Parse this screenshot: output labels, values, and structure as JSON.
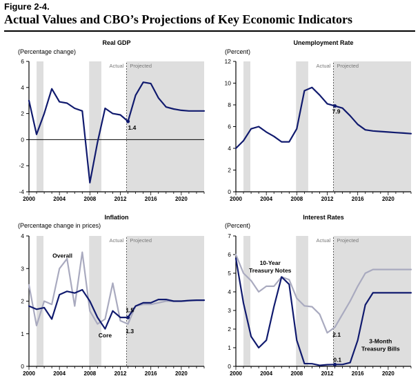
{
  "figure": {
    "label": "Figure 2-4.",
    "title": "Actual Values and CBO’s Projections of Key Economic Indicators"
  },
  "colors": {
    "shade": "#dedede",
    "navy": "#101a6e",
    "gray_line": "#a9aabf",
    "axis": "#000000"
  },
  "chart_data": [
    {
      "type": "line",
      "title": "Real GDP",
      "ylabel": "(Percentage change)",
      "xlim": [
        2000,
        2023
      ],
      "ylim": [
        -4,
        6
      ],
      "yticks": [
        -4,
        -2,
        0,
        2,
        4,
        6
      ],
      "xticks": [
        2000,
        2004,
        2008,
        2012,
        2016,
        2020
      ],
      "zero_line": 0,
      "recessions": [
        [
          2001.0,
          2001.9
        ],
        [
          2007.9,
          2009.5
        ]
      ],
      "actual_projected_divider": 2012.8,
      "actual_label": "Actual",
      "projected_label": "Projected",
      "series": [
        {
          "name": "Real GDP",
          "style": "navy",
          "x": [
            2000,
            2001,
            2002,
            2003,
            2004,
            2005,
            2006,
            2007,
            2008,
            2009,
            2010,
            2011,
            2012,
            2013,
            2014,
            2015,
            2016,
            2017,
            2018,
            2019,
            2020,
            2021,
            2022,
            2023
          ],
          "values": [
            3.0,
            0.4,
            2.0,
            3.9,
            2.9,
            2.8,
            2.4,
            2.2,
            -3.3,
            -0.2,
            2.4,
            2.0,
            1.9,
            1.4,
            3.4,
            4.4,
            4.3,
            3.2,
            2.5,
            2.35,
            2.25,
            2.2,
            2.2,
            2.2
          ]
        }
      ],
      "annotations": [
        {
          "text": "1.4",
          "x": 2013,
          "y": 1.4,
          "anchor": "below-right"
        }
      ]
    },
    {
      "type": "line",
      "title": "Unemployment Rate",
      "ylabel": "(Percent)",
      "xlim": [
        2000,
        2023
      ],
      "ylim": [
        0,
        12
      ],
      "yticks": [
        0,
        2,
        4,
        6,
        8,
        10,
        12
      ],
      "xticks": [
        2000,
        2004,
        2008,
        2012,
        2016,
        2020
      ],
      "recessions": [
        [
          2001.0,
          2001.9
        ],
        [
          2007.9,
          2009.5
        ]
      ],
      "actual_projected_divider": 2012.8,
      "actual_label": "Actual",
      "projected_label": "Projected",
      "series": [
        {
          "name": "Unemployment Rate",
          "style": "navy",
          "x": [
            2000,
            2001,
            2002,
            2003,
            2004,
            2005,
            2006,
            2007,
            2008,
            2009,
            2010,
            2011,
            2012,
            2013,
            2014,
            2015,
            2016,
            2017,
            2018,
            2019,
            2020,
            2021,
            2022,
            2023
          ],
          "values": [
            4.0,
            4.7,
            5.8,
            6.0,
            5.5,
            5.1,
            4.6,
            4.6,
            5.8,
            9.3,
            9.6,
            8.9,
            8.1,
            7.9,
            7.7,
            7.0,
            6.2,
            5.7,
            5.6,
            5.55,
            5.5,
            5.45,
            5.4,
            5.35
          ]
        }
      ],
      "annotations": [
        {
          "text": "7.9",
          "x": 2013,
          "y": 7.9,
          "anchor": "below"
        }
      ]
    },
    {
      "type": "line",
      "title": "Inflation",
      "ylabel": "(Percentage change in prices)",
      "xlim": [
        2000,
        2023
      ],
      "ylim": [
        0,
        4
      ],
      "yticks": [
        0,
        1,
        2,
        3,
        4
      ],
      "xticks": [
        2000,
        2004,
        2008,
        2012,
        2016,
        2020
      ],
      "recessions": [
        [
          2001.0,
          2001.9
        ],
        [
          2007.9,
          2009.5
        ]
      ],
      "actual_projected_divider": 2012.8,
      "actual_label": "Actual",
      "projected_label": "Projected",
      "series": [
        {
          "name": "Overall",
          "style": "gray",
          "x": [
            2000,
            2001,
            2002,
            2003,
            2004,
            2005,
            2006,
            2007,
            2008,
            2009,
            2010,
            2011,
            2012,
            2013,
            2014,
            2015,
            2016,
            2017,
            2018,
            2019,
            2020,
            2021,
            2022,
            2023
          ],
          "values": [
            2.5,
            1.25,
            2.0,
            1.9,
            3.0,
            3.3,
            1.85,
            3.5,
            1.7,
            1.3,
            1.45,
            2.55,
            1.4,
            1.3,
            1.85,
            1.9,
            1.9,
            1.95,
            2.0,
            2.0,
            2.0,
            2.02,
            2.03,
            2.03
          ]
        },
        {
          "name": "Core",
          "style": "navy",
          "x": [
            2000,
            2001,
            2002,
            2003,
            2004,
            2005,
            2006,
            2007,
            2008,
            2009,
            2010,
            2011,
            2012,
            2013,
            2014,
            2015,
            2016,
            2017,
            2018,
            2019,
            2020,
            2021,
            2022,
            2023
          ],
          "values": [
            1.85,
            1.75,
            1.8,
            1.45,
            2.2,
            2.3,
            2.25,
            2.35,
            2.0,
            1.5,
            1.15,
            1.7,
            1.5,
            1.5,
            1.85,
            1.95,
            1.95,
            2.05,
            2.05,
            2.0,
            2.0,
            2.02,
            2.03,
            2.03
          ]
        }
      ],
      "annotations": [
        {
          "text": "Overall",
          "x": 2004.4,
          "y": 3.4,
          "anchor": "center"
        },
        {
          "text": "Core",
          "x": 2010.0,
          "y": 0.95,
          "anchor": "center"
        },
        {
          "text": "1.5",
          "x": 2012.7,
          "y": 1.72,
          "anchor": "left"
        },
        {
          "text": "1.3",
          "x": 2012.7,
          "y": 1.08,
          "anchor": "left"
        }
      ]
    },
    {
      "type": "line",
      "title": "Interest Rates",
      "ylabel": "(Percent)",
      "xlim": [
        2000,
        2023
      ],
      "ylim": [
        0,
        7
      ],
      "yticks": [
        0,
        1,
        2,
        3,
        4,
        5,
        6,
        7
      ],
      "xticks": [
        2000,
        2004,
        2008,
        2012,
        2016,
        2020
      ],
      "recessions": [
        [
          2001.0,
          2001.9
        ],
        [
          2007.9,
          2009.5
        ]
      ],
      "actual_projected_divider": 2012.8,
      "actual_label": "Actual",
      "projected_label": "Projected",
      "series": [
        {
          "name": "10-Year Treasury Notes",
          "style": "gray",
          "x": [
            2000,
            2001,
            2002,
            2003,
            2004,
            2005,
            2006,
            2007,
            2008,
            2009,
            2010,
            2011,
            2012,
            2013,
            2014,
            2015,
            2016,
            2017,
            2018,
            2019,
            2020,
            2021,
            2022,
            2023
          ],
          "values": [
            6.0,
            5.0,
            4.6,
            4.0,
            4.3,
            4.3,
            4.8,
            4.65,
            3.65,
            3.25,
            3.2,
            2.8,
            1.8,
            2.1,
            2.8,
            3.5,
            4.3,
            5.0,
            5.2,
            5.2,
            5.2,
            5.2,
            5.2,
            5.2
          ]
        },
        {
          "name": "3-Month Treasury Bills",
          "style": "navy",
          "x": [
            2000,
            2001,
            2002,
            2003,
            2004,
            2005,
            2006,
            2007,
            2008,
            2009,
            2010,
            2011,
            2012,
            2013,
            2014,
            2015,
            2016,
            2017,
            2018,
            2019,
            2020,
            2021,
            2022,
            2023
          ],
          "values": [
            5.8,
            3.4,
            1.6,
            1.0,
            1.4,
            3.2,
            4.8,
            4.4,
            1.4,
            0.15,
            0.14,
            0.05,
            0.09,
            0.1,
            0.1,
            0.2,
            1.4,
            3.3,
            3.95,
            3.95,
            3.95,
            3.95,
            3.95,
            3.95
          ]
        }
      ],
      "annotations": [
        {
          "text": "10-Year",
          "x": 2004.5,
          "y": 5.55,
          "anchor": "center"
        },
        {
          "text": "Treasury Notes",
          "x": 2004.5,
          "y": 5.15,
          "anchor": "center"
        },
        {
          "text": "2.1",
          "x": 2012.7,
          "y": 1.7,
          "anchor": "left"
        },
        {
          "text": "3-Month",
          "x": 2019.0,
          "y": 1.35,
          "anchor": "center"
        },
        {
          "text": "Treasury Bills",
          "x": 2019.0,
          "y": 0.95,
          "anchor": "center"
        },
        {
          "text": "0.1",
          "x": 2012.8,
          "y": 0.35,
          "anchor": "left"
        }
      ]
    }
  ]
}
